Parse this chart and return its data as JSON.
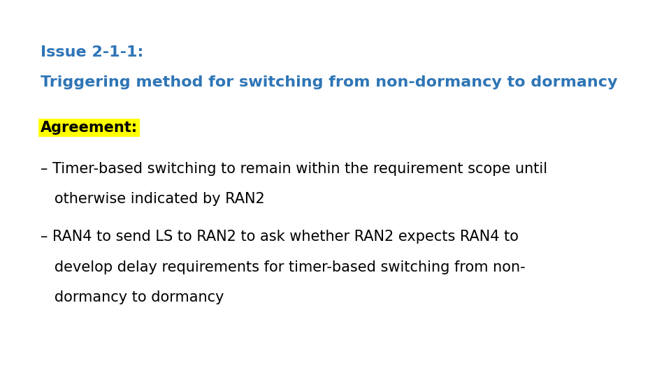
{
  "background_color": "#ffffff",
  "title_line1": "Issue 2-1-1:",
  "title_line2": "Triggering method for switching from non-dormancy to dormancy",
  "title_color": "#2E75B6",
  "title_fontsize": 16,
  "agreement_label": "Agreement:",
  "agreement_bg": "#FFFF00",
  "agreement_color": "#000000",
  "agreement_fontsize": 15,
  "bullet1_line1": "– Timer-based switching to remain within the requirement scope until",
  "bullet1_line2": "   otherwise indicated by RAN2",
  "bullet2_line1": "– RAN4 to send LS to RAN2 to ask whether RAN2 expects RAN4 to",
  "bullet2_line2": "   develop delay requirements for timer-based switching from non-",
  "bullet2_line3": "   dormancy to dormancy",
  "bullet_color": "#000000",
  "bullet_fontsize": 15
}
